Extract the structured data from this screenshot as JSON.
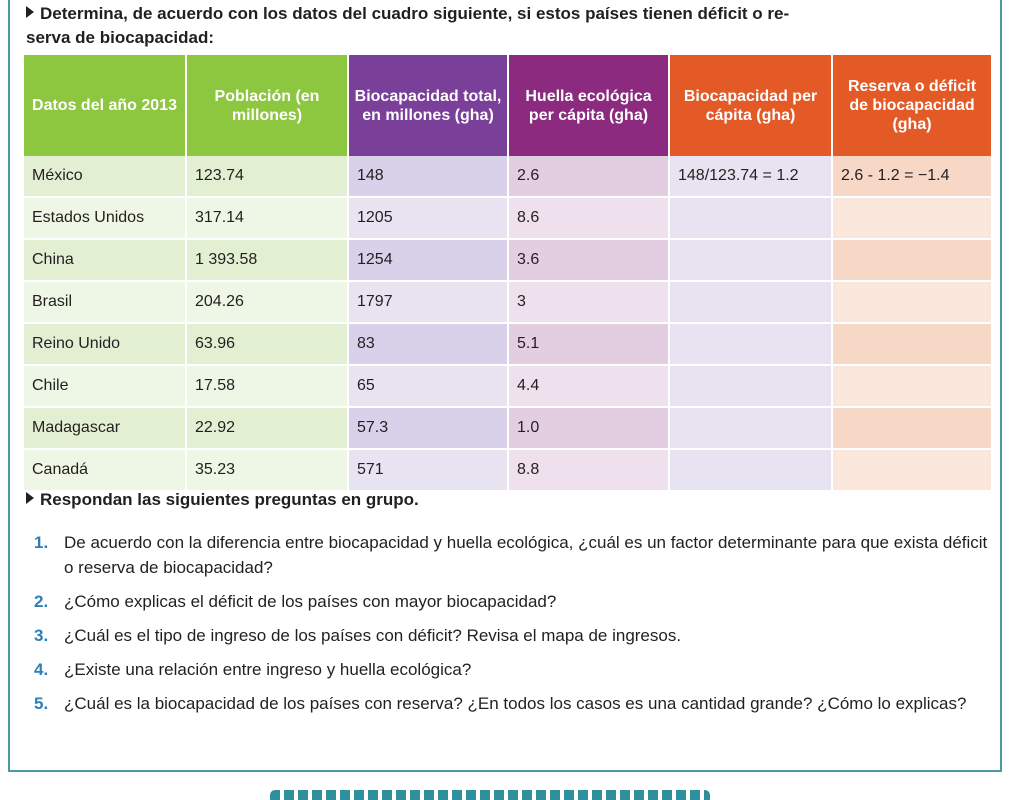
{
  "instruction": "Determina, de acuerdo con los datos del cuadro siguiente, si estos países tienen déficit o re-serva de biocapacidad:",
  "instruction_line1": "Determina, de acuerdo con los datos del cuadro siguiente, si estos países tienen déficit o re-",
  "instruction_line2": "serva de biocapacidad:",
  "table": {
    "headers": [
      "Datos del año 2013",
      "Población (en millones)",
      "Biocapacidad total, en millones (gha)",
      "Huella ecológica per cápita (gha)",
      "Biocapacidad per cápita (gha)",
      "Reserva o déficit de biocapacidad (gha)"
    ],
    "header_colors": [
      "#8dc63f",
      "#8dc63f",
      "#7a3f98",
      "#8b2a7e",
      "#e35a27",
      "#e35a27"
    ],
    "rows": [
      [
        "México",
        "123.74",
        "148",
        "2.6",
        "148/123.74 = 1.2",
        "2.6 - 1.2 = −1.4"
      ],
      [
        "Estados Unidos",
        "317.14",
        "1205",
        "8.6",
        "",
        ""
      ],
      [
        "China",
        "1 393.58",
        "1254",
        "3.6",
        "",
        ""
      ],
      [
        "Brasil",
        "204.26",
        "1797",
        "3",
        "",
        ""
      ],
      [
        "Reino Unido",
        "63.96",
        "83",
        "5.1",
        "",
        ""
      ],
      [
        "Chile",
        "17.58",
        "65",
        "4.4",
        "",
        ""
      ],
      [
        "Madagascar",
        "22.92",
        "57.3",
        "1.0",
        "",
        ""
      ],
      [
        "Canadá",
        "35.23",
        "571",
        "8.8",
        "",
        ""
      ]
    ]
  },
  "group_heading": "Respondan las siguientes preguntas en grupo.",
  "questions": [
    {
      "num": "1.",
      "text": "De acuerdo con la diferencia entre biocapacidad y huella ecológica, ¿cuál es un factor determinante para que exista déficit o reserva de biocapacidad?"
    },
    {
      "num": "2.",
      "text": "¿Cómo explicas el déficit de los países con mayor biocapacidad?"
    },
    {
      "num": "3.",
      "text": "¿Cuál es el tipo de ingreso de los países con déficit? Revisa el mapa de ingresos."
    },
    {
      "num": "4.",
      "text": "¿Existe una relación entre ingreso y huella ecológica?"
    },
    {
      "num": "5.",
      "text": "¿Cuál es la biocapacidad de los países con reserva? ¿En todos los casos es una cantidad grande? ¿Cómo lo explicas?"
    }
  ],
  "colors": {
    "frame": "#4a9aa6",
    "question_number": "#2c7fb8"
  }
}
